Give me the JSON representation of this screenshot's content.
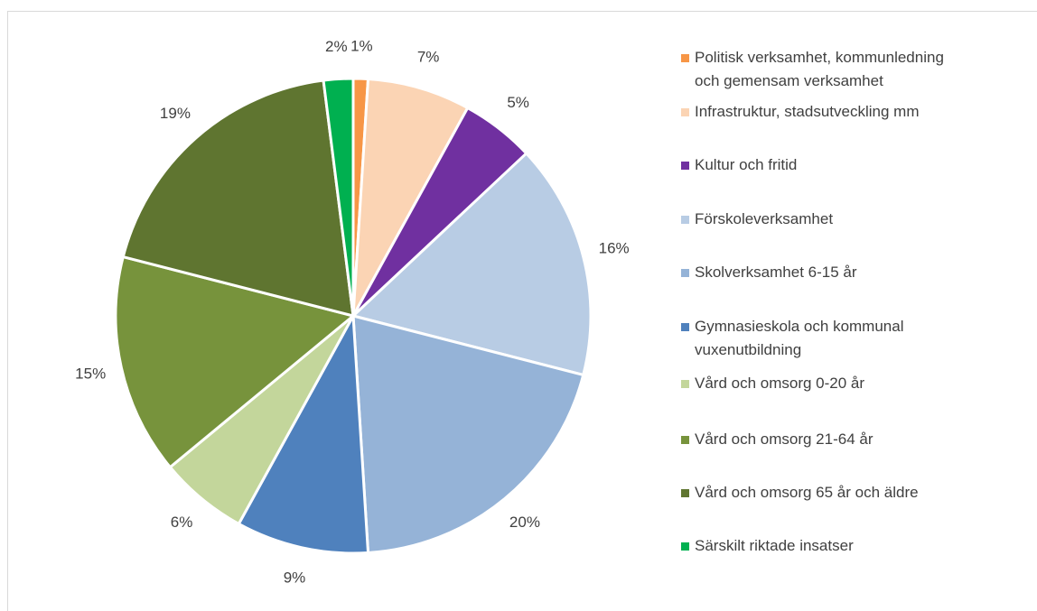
{
  "chart_data": {
    "type": "pie",
    "categories": [
      "Politisk verksamhet, kommunledning och gemensam verksamhet",
      "Infrastruktur, stadsutveckling mm",
      "Kultur och fritid",
      "Förskoleverksamhet",
      "Skolverksamhet 6-15 år",
      "Gymnasieskola och kommunal vuxenutbildning",
      "Vård och omsorg 0-20 år",
      "Vård och omsorg 21-64 år",
      "Vård och omsorg 65 år och äldre",
      "Särskilt riktade insatser"
    ],
    "values": [
      1,
      7,
      5,
      16,
      20,
      9,
      6,
      15,
      19,
      2
    ],
    "value_labels": [
      "1%",
      "7%",
      "5%",
      "16%",
      "20%",
      "9%",
      "6%",
      "15%",
      "19%",
      "2%"
    ],
    "colors": [
      "#f79646",
      "#fbd4b4",
      "#7030a0",
      "#b8cce4",
      "#95b3d7",
      "#4f81bd",
      "#c3d69b",
      "#77933c",
      "#5f7530",
      "#00b050"
    ],
    "legend": "right"
  }
}
